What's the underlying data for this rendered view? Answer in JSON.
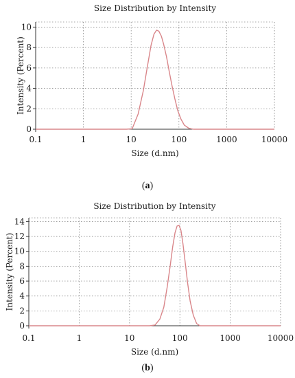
{
  "chart_data": [
    {
      "type": "line",
      "title": "Size Distribution by Intensity",
      "xlabel": "Size (d.nm)",
      "ylabel": "Intensity (Percent)",
      "x_scale": "log",
      "xlim": [
        0.1,
        10000
      ],
      "ylim": [
        0,
        10.5
      ],
      "x_ticks": [
        "0.1",
        "1",
        "10",
        "100",
        "1000",
        "10000"
      ],
      "y_ticks": [
        "0",
        "2",
        "4",
        "6",
        "8",
        "10"
      ],
      "grid": true,
      "caption_label": "a",
      "series": [
        {
          "color": "#d9868a",
          "x": [
            0.1,
            1,
            8,
            10.5,
            14,
            18,
            22,
            26,
            30,
            34,
            38,
            43,
            48,
            55,
            63,
            72,
            82,
            95,
            110,
            130,
            160,
            200,
            1000,
            10000
          ],
          "y": [
            0,
            0,
            0,
            0.05,
            1.5,
            3.8,
            6.2,
            8.2,
            9.3,
            9.7,
            9.6,
            9.1,
            8.3,
            7.1,
            5.6,
            4.2,
            3.0,
            1.8,
            1.0,
            0.4,
            0.1,
            0,
            0,
            0
          ]
        }
      ]
    },
    {
      "type": "line",
      "title": "Size Distribution by Intensity",
      "xlabel": "Size (d.nm)",
      "ylabel": "Intensity (Percent)",
      "x_scale": "log",
      "xlim": [
        0.1,
        10000
      ],
      "ylim": [
        0,
        14.5
      ],
      "x_ticks": [
        "0.1",
        "1",
        "10",
        "100",
        "1000",
        "10000"
      ],
      "y_ticks": [
        "0",
        "2",
        "4",
        "6",
        "8",
        "10",
        "12",
        "14"
      ],
      "grid": true,
      "caption_label": "b",
      "series": [
        {
          "color": "#d9868a",
          "x": [
            0.1,
            1,
            25,
            32,
            40,
            48,
            56,
            64,
            72,
            80,
            88,
            96,
            105,
            115,
            128,
            142,
            160,
            185,
            215,
            250,
            1000,
            10000
          ],
          "y": [
            0,
            0,
            0,
            0.1,
            0.9,
            2.5,
            5.2,
            8.0,
            10.6,
            12.5,
            13.4,
            13.5,
            12.8,
            11.0,
            8.4,
            5.8,
            3.3,
            1.4,
            0.3,
            0,
            0,
            0
          ]
        }
      ]
    }
  ]
}
